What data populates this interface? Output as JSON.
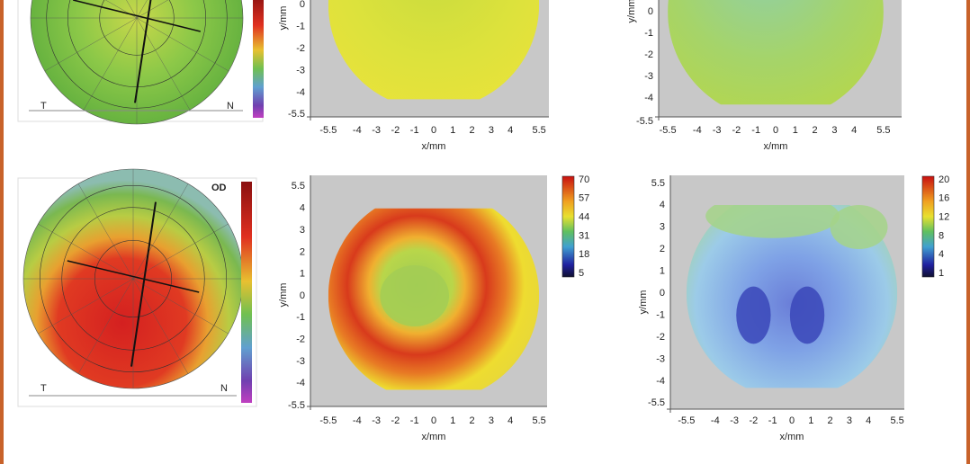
{
  "panels": {
    "top_left": {
      "left": "T",
      "right": "N"
    },
    "top_middle": {
      "x_label": "x/mm",
      "y_label": "y/mm",
      "x_ticks": [
        "-5.5",
        "-4",
        "-3",
        "-2",
        "-1",
        "0",
        "1",
        "2",
        "3",
        "4",
        "5.5"
      ],
      "y_ticks": [
        "0",
        "-1",
        "-2",
        "-3",
        "-4",
        "-5.5"
      ]
    },
    "top_right": {
      "x_label": "x/mm",
      "y_label": "y/mm",
      "x_ticks": [
        "-5.5",
        "-4",
        "-3",
        "-2",
        "-1",
        "0",
        "1",
        "2",
        "3",
        "4",
        "5.5"
      ],
      "y_ticks": [
        "0",
        "-1",
        "-2",
        "-3",
        "-4",
        "-5.5"
      ]
    },
    "bottom_left": {
      "eye": "OD",
      "left": "T",
      "right": "N"
    },
    "bottom_middle": {
      "x_label": "x/mm",
      "y_label": "y/mm",
      "x_ticks": [
        "-5.5",
        "-4",
        "-3",
        "-2",
        "-1",
        "0",
        "1",
        "2",
        "3",
        "4",
        "5.5"
      ],
      "y_ticks": [
        "5.5",
        "4",
        "3",
        "2",
        "1",
        "0",
        "-1",
        "-2",
        "-3",
        "-4",
        "-5.5"
      ],
      "colorbar": [
        "70",
        "57",
        "44",
        "31",
        "18",
        "5"
      ]
    },
    "bottom_right": {
      "x_label": "x/mm",
      "y_label": "y/mm",
      "x_ticks": [
        "-5.5",
        "-4",
        "-3",
        "-2",
        "-1",
        "0",
        "1",
        "2",
        "3",
        "4",
        "5.5"
      ],
      "y_ticks": [
        "5.5",
        "4",
        "3",
        "2",
        "1",
        "0",
        "-1",
        "-2",
        "-3",
        "-4",
        "-5.5"
      ],
      "colorbar": [
        "20",
        "16",
        "12",
        "8",
        "4",
        "1"
      ]
    }
  }
}
